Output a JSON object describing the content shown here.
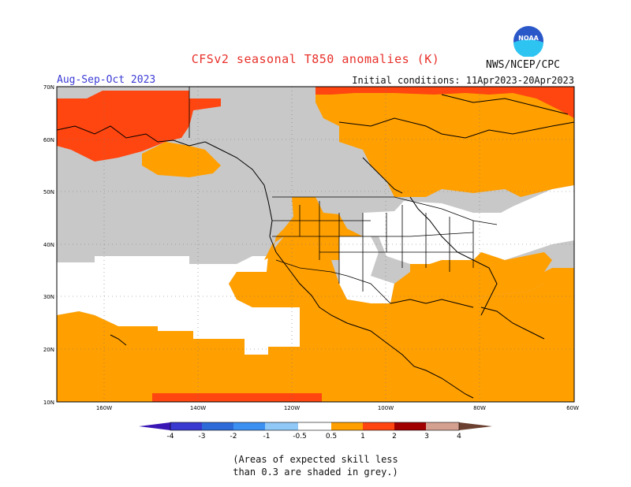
{
  "header": {
    "title": "CFSv2 seasonal T850 anomalies (K)",
    "season": "Aug-Sep-Oct 2023",
    "initial_conditions": "Initial conditions: 11Apr2023-20Apr2023",
    "agency": "NWS/NCEP/CPC",
    "logo_text": "NOAA"
  },
  "map": {
    "lat_labels": [
      "70N",
      "60N",
      "50N",
      "40N",
      "30N",
      "20N",
      "10N"
    ],
    "lon_labels": [
      "160W",
      "140W",
      "120W",
      "100W",
      "80W",
      "60W"
    ],
    "colors": {
      "grey": "#c8c8c8",
      "white": "#ffffff",
      "orange": "#ff9f00",
      "red": "#ff4510",
      "darkred": "#e51b00"
    }
  },
  "colorbar": {
    "labels": [
      "-4",
      "-3",
      "-2",
      "-1",
      "-0.5",
      "0.5",
      "1",
      "2",
      "3",
      "4"
    ],
    "colors": [
      "#3a17b4",
      "#2e5ad6",
      "#3c8af2",
      "#6cb8f8",
      "#b4dcfa",
      "#ffffff",
      "#ff9f00",
      "#ff4510",
      "#c50000",
      "#9a1010",
      "#d4a090",
      "#7a4a3a"
    ]
  },
  "caption": {
    "line1": "(Areas of expected skill less",
    "line2": "than 0.3 are shaded in grey.)"
  }
}
